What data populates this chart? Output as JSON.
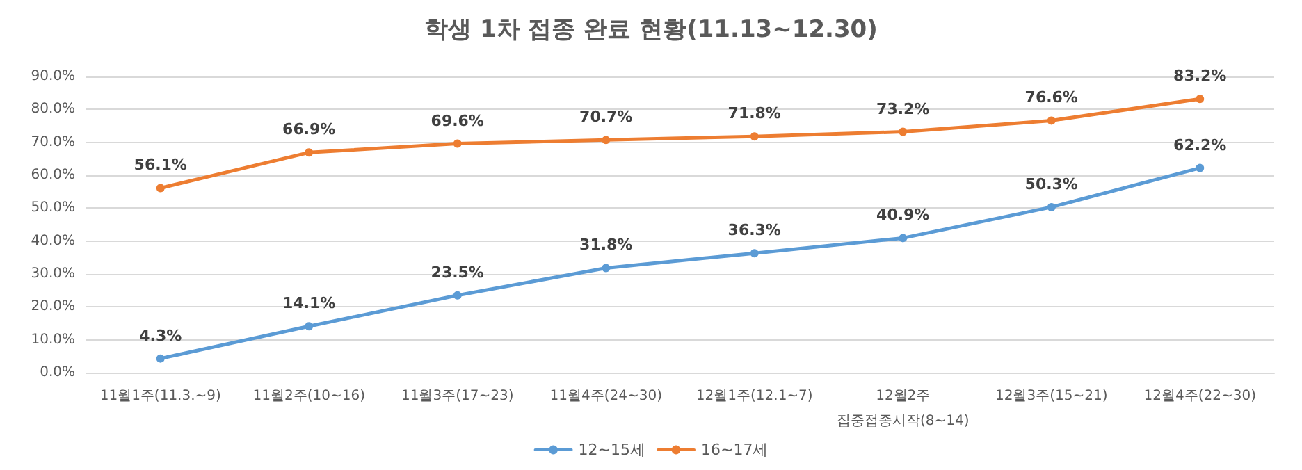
{
  "chart_data": {
    "type": "line",
    "title": "학생 1차 접종 완료 현황(11.13~12.30)",
    "categories": [
      "11월1주(11.3.~9)",
      "11월2주(10~16)",
      "11월3주(17~23)",
      "11월4주(24~30)",
      "12월1주(12.1~7)",
      "12월2주\n집중접종시작(8~14)",
      "12월3주(15~21)",
      "12월4주(22~30)"
    ],
    "series": [
      {
        "name": "12~15세",
        "color": "#5b9bd5",
        "values": [
          4.3,
          14.1,
          23.5,
          31.8,
          36.3,
          40.9,
          50.3,
          62.2
        ],
        "value_labels": [
          "4.3%",
          "14.1%",
          "23.5%",
          "31.8%",
          "36.3%",
          "40.9%",
          "50.3%",
          "62.2%"
        ]
      },
      {
        "name": "16~17세",
        "color": "#ed7d31",
        "values": [
          56.1,
          66.9,
          69.6,
          70.7,
          71.8,
          73.2,
          76.6,
          83.2
        ],
        "value_labels": [
          "56.1%",
          "66.9%",
          "69.6%",
          "70.7%",
          "71.8%",
          "73.2%",
          "76.6%",
          "83.2%"
        ]
      }
    ],
    "ylim": [
      0,
      90
    ],
    "yticks": [
      {
        "value": 0,
        "label": "0.0%"
      },
      {
        "value": 10,
        "label": "10.0%"
      },
      {
        "value": 20,
        "label": "20.0%"
      },
      {
        "value": 30,
        "label": "30.0%"
      },
      {
        "value": 40,
        "label": "40.0%"
      },
      {
        "value": 50,
        "label": "50.0%"
      },
      {
        "value": 60,
        "label": "60.0%"
      },
      {
        "value": 70,
        "label": "70.0%"
      },
      {
        "value": 80,
        "label": "80.0%"
      },
      {
        "value": 90,
        "label": "90.0%"
      }
    ],
    "grid": "y",
    "legend": "bottom",
    "marker": "circle",
    "line_style": "solid"
  }
}
